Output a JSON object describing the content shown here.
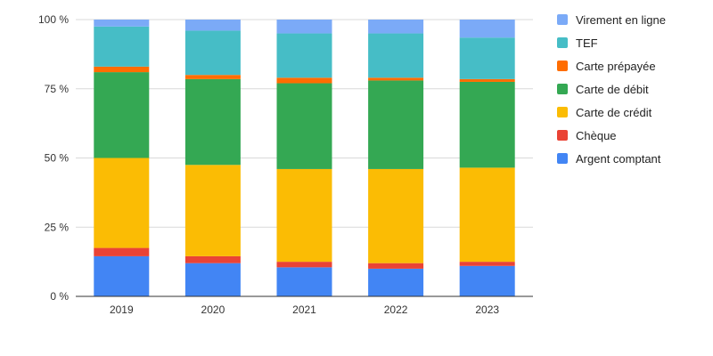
{
  "chart_data": {
    "type": "bar",
    "stacked": true,
    "percent_stacked": true,
    "categories": [
      "2019",
      "2020",
      "2021",
      "2022",
      "2023"
    ],
    "ylim": [
      0,
      100
    ],
    "y_ticks": [
      "0 %",
      "25 %",
      "50 %",
      "75 %",
      "100 %"
    ],
    "legend_position": "right",
    "series": [
      {
        "name": "Argent comptant",
        "color": "#4285F4",
        "values": [
          14.5,
          12,
          10.5,
          10,
          11
        ]
      },
      {
        "name": "Chèque",
        "color": "#EA4335",
        "values": [
          3,
          2.5,
          2,
          2,
          1.5
        ]
      },
      {
        "name": "Carte de crédit",
        "color": "#FBBC04",
        "values": [
          32.5,
          33,
          33.5,
          34,
          34
        ]
      },
      {
        "name": "Carte de débit",
        "color": "#34A853",
        "values": [
          31,
          31,
          31,
          32,
          31
        ]
      },
      {
        "name": "Carte prépayée",
        "color": "#FF6D01",
        "values": [
          2,
          1.5,
          2,
          1,
          1
        ]
      },
      {
        "name": "TEF",
        "color": "#46BDC6",
        "values": [
          14.5,
          16,
          16,
          16,
          15
        ]
      },
      {
        "name": "Virement en ligne",
        "color": "#7BAAF7",
        "values": [
          2.5,
          4,
          5,
          5,
          6.5
        ]
      }
    ]
  }
}
